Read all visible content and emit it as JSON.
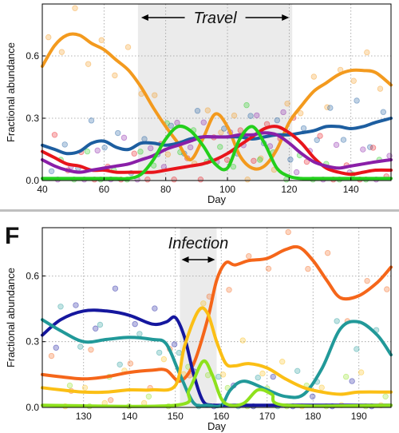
{
  "chart_data": [
    {
      "type": "line",
      "panel_label": "",
      "xlabel": "Day",
      "ylabel": "Fractional abundance",
      "xlim": [
        40,
        153
      ],
      "ylim": [
        0,
        0.85
      ],
      "xticks": [
        40,
        60,
        80,
        100,
        120,
        140
      ],
      "yticks": [
        0.0,
        0.3,
        0.6
      ],
      "ytick_labels": [
        "0.0",
        "0.3",
        "0.6"
      ],
      "grid": true,
      "shaded_region": [
        71,
        121
      ],
      "annotation": "Travel",
      "annotation_range": [
        71,
        121
      ],
      "series": [
        {
          "color": "#f39a1e",
          "points": [
            [
              40,
              0.55
            ],
            [
              44,
              0.65
            ],
            [
              48,
              0.7
            ],
            [
              52,
              0.7
            ],
            [
              56,
              0.66
            ],
            [
              60,
              0.63
            ],
            [
              64,
              0.58
            ],
            [
              68,
              0.53
            ],
            [
              72,
              0.45
            ],
            [
              76,
              0.35
            ],
            [
              80,
              0.26
            ],
            [
              84,
              0.18
            ],
            [
              88,
              0.1
            ],
            [
              92,
              0.2
            ],
            [
              96,
              0.32
            ],
            [
              100,
              0.26
            ],
            [
              104,
              0.12
            ],
            [
              108,
              0.06
            ],
            [
              112,
              0.07
            ],
            [
              116,
              0.15
            ],
            [
              120,
              0.28
            ],
            [
              124,
              0.36
            ],
            [
              128,
              0.43
            ],
            [
              132,
              0.47
            ],
            [
              136,
              0.51
            ],
            [
              140,
              0.53
            ],
            [
              144,
              0.53
            ],
            [
              148,
              0.52
            ],
            [
              153,
              0.46
            ]
          ]
        },
        {
          "color": "#1d5ea0",
          "points": [
            [
              40,
              0.17
            ],
            [
              44,
              0.15
            ],
            [
              48,
              0.13
            ],
            [
              52,
              0.14
            ],
            [
              56,
              0.18
            ],
            [
              60,
              0.19
            ],
            [
              64,
              0.16
            ],
            [
              68,
              0.15
            ],
            [
              72,
              0.18
            ],
            [
              76,
              0.18
            ],
            [
              80,
              0.17
            ],
            [
              84,
              0.18
            ],
            [
              88,
              0.2
            ],
            [
              92,
              0.21
            ],
            [
              96,
              0.21
            ],
            [
              100,
              0.21
            ],
            [
              104,
              0.21
            ],
            [
              108,
              0.2
            ],
            [
              112,
              0.21
            ],
            [
              116,
              0.22
            ],
            [
              120,
              0.22
            ],
            [
              124,
              0.23
            ],
            [
              128,
              0.24
            ],
            [
              132,
              0.26
            ],
            [
              136,
              0.26
            ],
            [
              140,
              0.25
            ],
            [
              144,
              0.26
            ],
            [
              148,
              0.28
            ],
            [
              153,
              0.3
            ]
          ]
        },
        {
          "color": "#e8151b",
          "points": [
            [
              40,
              0.14
            ],
            [
              44,
              0.11
            ],
            [
              48,
              0.08
            ],
            [
              52,
              0.07
            ],
            [
              56,
              0.05
            ],
            [
              60,
              0.05
            ],
            [
              64,
              0.04
            ],
            [
              68,
              0.04
            ],
            [
              72,
              0.04
            ],
            [
              76,
              0.04
            ],
            [
              80,
              0.05
            ],
            [
              84,
              0.06
            ],
            [
              88,
              0.07
            ],
            [
              92,
              0.08
            ],
            [
              96,
              0.1
            ],
            [
              100,
              0.13
            ],
            [
              104,
              0.17
            ],
            [
              108,
              0.21
            ],
            [
              112,
              0.25
            ],
            [
              116,
              0.26
            ],
            [
              120,
              0.23
            ],
            [
              124,
              0.18
            ],
            [
              128,
              0.11
            ],
            [
              132,
              0.06
            ],
            [
              136,
              0.04
            ],
            [
              140,
              0.03
            ],
            [
              144,
              0.04
            ],
            [
              148,
              0.05
            ],
            [
              153,
              0.05
            ]
          ]
        },
        {
          "color": "#8a1fa8",
          "points": [
            [
              40,
              0.1
            ],
            [
              44,
              0.07
            ],
            [
              48,
              0.05
            ],
            [
              52,
              0.04
            ],
            [
              56,
              0.05
            ],
            [
              60,
              0.06
            ],
            [
              64,
              0.07
            ],
            [
              68,
              0.08
            ],
            [
              72,
              0.1
            ],
            [
              76,
              0.12
            ],
            [
              80,
              0.15
            ],
            [
              84,
              0.17
            ],
            [
              88,
              0.19
            ],
            [
              92,
              0.21
            ],
            [
              96,
              0.21
            ],
            [
              100,
              0.21
            ],
            [
              104,
              0.22
            ],
            [
              108,
              0.22
            ],
            [
              112,
              0.23
            ],
            [
              116,
              0.22
            ],
            [
              120,
              0.18
            ],
            [
              124,
              0.13
            ],
            [
              128,
              0.09
            ],
            [
              132,
              0.07
            ],
            [
              136,
              0.06
            ],
            [
              140,
              0.07
            ],
            [
              144,
              0.08
            ],
            [
              148,
              0.09
            ],
            [
              153,
              0.1
            ]
          ]
        },
        {
          "color": "#23cf1c",
          "points": [
            [
              40,
              0.01
            ],
            [
              44,
              0.01
            ],
            [
              48,
              0.01
            ],
            [
              52,
              0.01
            ],
            [
              56,
              0.01
            ],
            [
              60,
              0.01
            ],
            [
              64,
              0.01
            ],
            [
              68,
              0.01
            ],
            [
              72,
              0.03
            ],
            [
              76,
              0.1
            ],
            [
              80,
              0.2
            ],
            [
              84,
              0.26
            ],
            [
              88,
              0.24
            ],
            [
              92,
              0.17
            ],
            [
              96,
              0.08
            ],
            [
              100,
              0.06
            ],
            [
              104,
              0.2
            ],
            [
              108,
              0.26
            ],
            [
              112,
              0.18
            ],
            [
              116,
              0.06
            ],
            [
              120,
              0.02
            ],
            [
              124,
              0.01
            ],
            [
              128,
              0.01
            ],
            [
              132,
              0.01
            ],
            [
              136,
              0.01
            ],
            [
              140,
              0.01
            ],
            [
              144,
              0.01
            ],
            [
              148,
              0.01
            ],
            [
              153,
              0.01
            ]
          ]
        }
      ]
    },
    {
      "type": "line",
      "panel_label": "F",
      "xlabel": "Day",
      "ylabel": "Fractional abundance",
      "xlim": [
        121,
        197
      ],
      "ylim": [
        0,
        0.82
      ],
      "xticks": [
        130,
        140,
        150,
        160,
        170,
        180,
        190
      ],
      "yticks": [
        0.0,
        0.3,
        0.6
      ],
      "ytick_labels": [
        "0.0",
        "0.3",
        "0.6"
      ],
      "grid": true,
      "shaded_region": [
        151,
        159
      ],
      "annotation": "Infection",
      "annotation_range": [
        151,
        159
      ],
      "series": [
        {
          "color": "#f5661a",
          "points": [
            [
              121,
              0.15
            ],
            [
              125,
              0.14
            ],
            [
              130,
              0.13
            ],
            [
              135,
              0.14
            ],
            [
              140,
              0.16
            ],
            [
              145,
              0.17
            ],
            [
              148,
              0.17
            ],
            [
              151,
              0.12
            ],
            [
              154,
              0.2
            ],
            [
              157,
              0.4
            ],
            [
              159,
              0.58
            ],
            [
              161,
              0.66
            ],
            [
              163,
              0.65
            ],
            [
              166,
              0.67
            ],
            [
              170,
              0.68
            ],
            [
              174,
              0.72
            ],
            [
              177,
              0.73
            ],
            [
              180,
              0.67
            ],
            [
              183,
              0.58
            ],
            [
              186,
              0.5
            ],
            [
              190,
              0.51
            ],
            [
              194,
              0.57
            ],
            [
              197,
              0.64
            ]
          ]
        },
        {
          "color": "#15179e",
          "points": [
            [
              121,
              0.33
            ],
            [
              125,
              0.4
            ],
            [
              130,
              0.44
            ],
            [
              135,
              0.44
            ],
            [
              140,
              0.42
            ],
            [
              145,
              0.38
            ],
            [
              148,
              0.39
            ],
            [
              150,
              0.41
            ],
            [
              152,
              0.32
            ],
            [
              154,
              0.15
            ],
            [
              156,
              0.03
            ],
            [
              158,
              0.01
            ],
            [
              160,
              0.01
            ],
            [
              197,
              0.01
            ]
          ]
        },
        {
          "color": "#219999",
          "points": [
            [
              121,
              0.4
            ],
            [
              125,
              0.35
            ],
            [
              130,
              0.3
            ],
            [
              135,
              0.31
            ],
            [
              140,
              0.32
            ],
            [
              145,
              0.31
            ],
            [
              148,
              0.29
            ],
            [
              151,
              0.15
            ],
            [
              154,
              0.02
            ],
            [
              157,
              0.01
            ],
            [
              160,
              0.01
            ],
            [
              162,
              0.08
            ],
            [
              165,
              0.12
            ],
            [
              170,
              0.08
            ],
            [
              174,
              0.05
            ],
            [
              178,
              0.06
            ],
            [
              182,
              0.18
            ],
            [
              186,
              0.36
            ],
            [
              190,
              0.39
            ],
            [
              194,
              0.33
            ],
            [
              197,
              0.24
            ]
          ]
        },
        {
          "color": "#fbbf15",
          "points": [
            [
              121,
              0.09
            ],
            [
              125,
              0.08
            ],
            [
              130,
              0.07
            ],
            [
              135,
              0.07
            ],
            [
              140,
              0.08
            ],
            [
              145,
              0.08
            ],
            [
              150,
              0.1
            ],
            [
              152,
              0.28
            ],
            [
              155,
              0.44
            ],
            [
              157,
              0.43
            ],
            [
              159,
              0.3
            ],
            [
              161,
              0.2
            ],
            [
              163,
              0.19
            ],
            [
              166,
              0.2
            ],
            [
              170,
              0.18
            ],
            [
              174,
              0.13
            ],
            [
              178,
              0.09
            ],
            [
              182,
              0.07
            ],
            [
              186,
              0.06
            ],
            [
              190,
              0.07
            ],
            [
              197,
              0.07
            ]
          ]
        },
        {
          "color": "#8ee11d",
          "points": [
            [
              121,
              0.01
            ],
            [
              150,
              0.01
            ],
            [
              153,
              0.08
            ],
            [
              156,
              0.21
            ],
            [
              158,
              0.15
            ],
            [
              160,
              0.04
            ],
            [
              162,
              0.01
            ],
            [
              165,
              0.02
            ],
            [
              168,
              0.08
            ],
            [
              171,
              0.06
            ],
            [
              174,
              0.01
            ],
            [
              197,
              0.01
            ]
          ]
        }
      ]
    }
  ]
}
